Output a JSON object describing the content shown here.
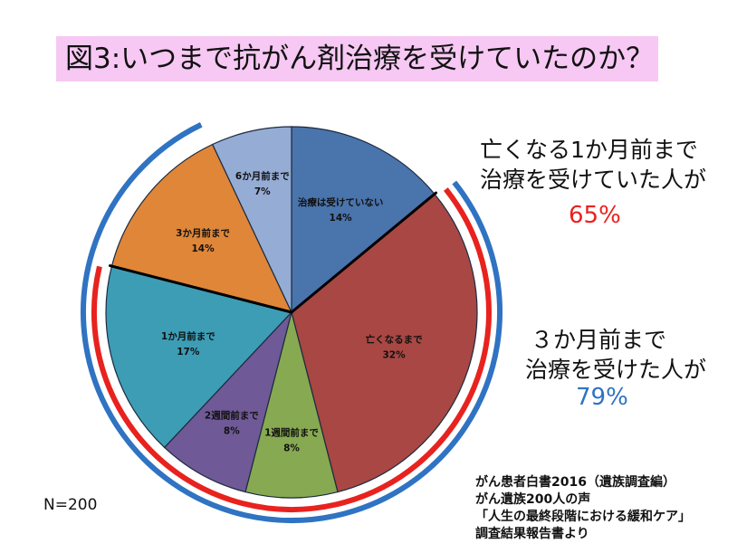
{
  "title": "図3:いつまで抗がん剤治療を受けていたのか？",
  "chart_data": {
    "type": "pie",
    "sample_size": "N=200",
    "slices": [
      {
        "label": "治療は受けていない",
        "value": 14,
        "value_label": "14%",
        "color": "#4a74ac"
      },
      {
        "label": "亡くなるまで",
        "value": 32,
        "value_label": "32%",
        "color": "#a84743"
      },
      {
        "label": "1週間前まで",
        "value": 8,
        "value_label": "8%",
        "color": "#87a952"
      },
      {
        "label": "2週間前まで",
        "value": 8,
        "value_label": "8%",
        "color": "#6f5996"
      },
      {
        "label": "1か月前まで",
        "value": 17,
        "value_label": "17%",
        "color": "#3d9db5"
      },
      {
        "label": "3か月前まで",
        "value": 14,
        "value_label": "14%",
        "color": "#df8638"
      },
      {
        "label": "6か月前まで",
        "value": 7,
        "value_label": "7%",
        "color": "#95acd4"
      }
    ],
    "annotations": [
      {
        "line1": "亡くなる1か月前まで",
        "line2": "治療を受けていた人が",
        "percent": "65%",
        "color": "#e8221e"
      },
      {
        "line1": "３か月前まで",
        "line2": "治療を受けた人が",
        "percent": "79%",
        "color": "#2f73c2"
      }
    ]
  },
  "source": {
    "line1": "がん患者白書2016（遺族調査編）",
    "line2": "がん遺族200人の声",
    "line3": "「人生の最終段階における緩和ケア」",
    "line4": "調査結果報告書より"
  }
}
